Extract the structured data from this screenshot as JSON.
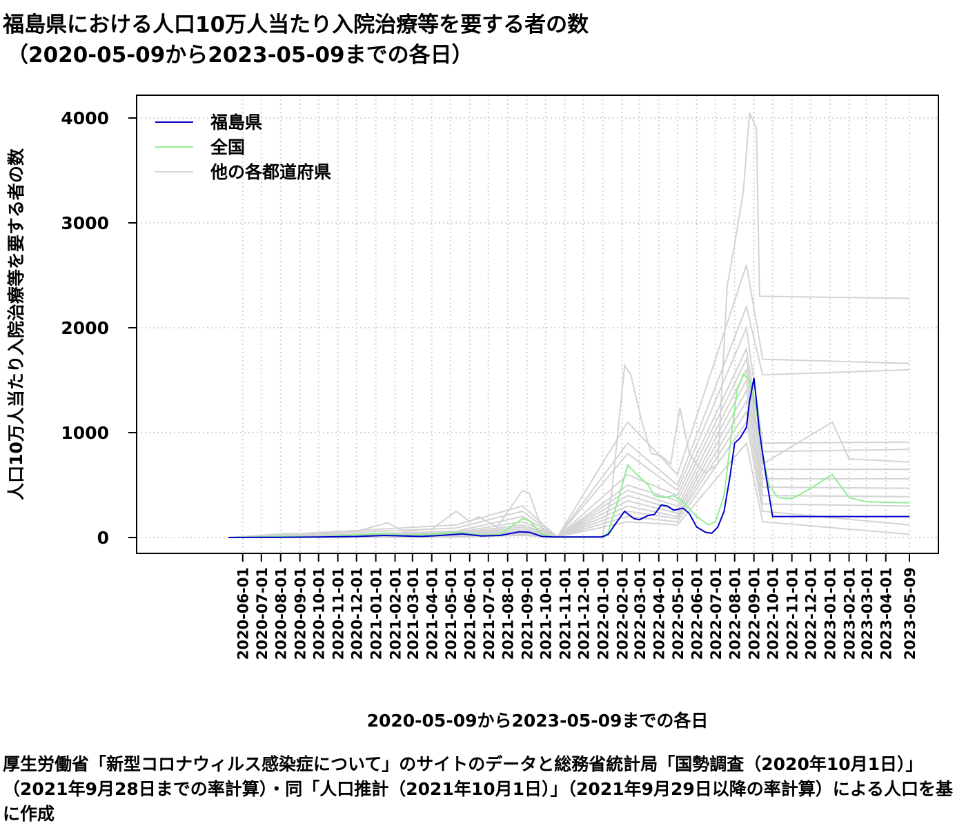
{
  "title_line1": "福島県における人口10万人当たり入院治療等を要する者の数",
  "title_line2": "（2020-05-09から2023-05-09までの各日）",
  "xlabel": "2020-05-09から2023-05-09までの各日",
  "ylabel": "人口10万人当たり入院治療等を要する者の数",
  "caption": "厚生労働省「新型コロナウィルス感染症について」のサイトのデータと総務省統計局「国勢調査（2020年10月1日）」（2021年9月28日までの率計算）・同「人口推計（2021年10月1日）」（2021年9月29日以降の率計算）による人口を基に作成",
  "chart_data": {
    "type": "line",
    "x_range": [
      "2020-05-09",
      "2023-05-09"
    ],
    "ylim": [
      -150,
      4200
    ],
    "y_ticks": [
      0,
      1000,
      2000,
      3000,
      4000
    ],
    "x_tick_labels": [
      "2020-06-01",
      "2020-07-01",
      "2020-08-01",
      "2020-09-01",
      "2020-10-01",
      "2020-11-01",
      "2020-12-01",
      "2021-01-01",
      "2021-02-01",
      "2021-03-01",
      "2021-04-01",
      "2021-05-01",
      "2021-06-01",
      "2021-07-01",
      "2021-08-01",
      "2021-09-01",
      "2021-10-01",
      "2021-11-01",
      "2021-12-01",
      "2022-01-01",
      "2022-02-01",
      "2022-03-01",
      "2022-04-01",
      "2022-05-01",
      "2022-06-01",
      "2022-07-01",
      "2022-08-01",
      "2022-09-01",
      "2022-10-01",
      "2022-11-01",
      "2022-12-01",
      "2023-01-01",
      "2023-02-01",
      "2023-03-01",
      "2023-04-01",
      "2023-05-09"
    ],
    "grid": "dotted",
    "legend_position": "top-left",
    "series": [
      {
        "name": "福島県",
        "color": "#0000cc",
        "points": [
          [
            "2020-05-09",
            0
          ],
          [
            "2020-08-01",
            2
          ],
          [
            "2020-10-01",
            5
          ],
          [
            "2020-12-01",
            10
          ],
          [
            "2021-01-15",
            20
          ],
          [
            "2021-02-15",
            15
          ],
          [
            "2021-03-15",
            10
          ],
          [
            "2021-04-15",
            20
          ],
          [
            "2021-05-20",
            35
          ],
          [
            "2021-06-20",
            15
          ],
          [
            "2021-07-20",
            20
          ],
          [
            "2021-08-20",
            55
          ],
          [
            "2021-09-05",
            50
          ],
          [
            "2021-09-25",
            10
          ],
          [
            "2021-10-15",
            5
          ],
          [
            "2021-12-31",
            5
          ],
          [
            "2022-01-10",
            30
          ],
          [
            "2022-01-20",
            120
          ],
          [
            "2022-02-05",
            250
          ],
          [
            "2022-02-20",
            180
          ],
          [
            "2022-03-01",
            170
          ],
          [
            "2022-03-15",
            210
          ],
          [
            "2022-03-25",
            220
          ],
          [
            "2022-04-05",
            310
          ],
          [
            "2022-04-15",
            300
          ],
          [
            "2022-04-25",
            260
          ],
          [
            "2022-05-10",
            280
          ],
          [
            "2022-05-20",
            230
          ],
          [
            "2022-06-01",
            100
          ],
          [
            "2022-06-15",
            50
          ],
          [
            "2022-06-25",
            40
          ],
          [
            "2022-07-05",
            100
          ],
          [
            "2022-07-15",
            250
          ],
          [
            "2022-07-25",
            600
          ],
          [
            "2022-08-01",
            900
          ],
          [
            "2022-08-10",
            950
          ],
          [
            "2022-08-20",
            1050
          ],
          [
            "2022-08-25",
            1300
          ],
          [
            "2022-09-01",
            1520
          ],
          [
            "2022-09-05",
            1300
          ],
          [
            "2022-09-10",
            1000
          ],
          [
            "2022-09-20",
            600
          ],
          [
            "2022-10-01",
            200
          ],
          [
            "2023-05-09",
            200
          ]
        ]
      },
      {
        "name": "全国",
        "color": "#90ee90",
        "points": [
          [
            "2020-05-09",
            0
          ],
          [
            "2020-08-01",
            10
          ],
          [
            "2020-10-01",
            8
          ],
          [
            "2020-12-01",
            25
          ],
          [
            "2021-01-15",
            40
          ],
          [
            "2021-02-15",
            20
          ],
          [
            "2021-04-01",
            30
          ],
          [
            "2021-05-15",
            50
          ],
          [
            "2021-06-20",
            20
          ],
          [
            "2021-07-20",
            30
          ],
          [
            "2021-08-25",
            180
          ],
          [
            "2021-09-05",
            160
          ],
          [
            "2021-09-25",
            30
          ],
          [
            "2021-10-15",
            5
          ],
          [
            "2021-12-31",
            5
          ],
          [
            "2022-01-10",
            50
          ],
          [
            "2022-01-25",
            350
          ],
          [
            "2022-02-10",
            690
          ],
          [
            "2022-02-25",
            600
          ],
          [
            "2022-03-15",
            500
          ],
          [
            "2022-03-25",
            400
          ],
          [
            "2022-04-10",
            380
          ],
          [
            "2022-04-25",
            400
          ],
          [
            "2022-05-10",
            340
          ],
          [
            "2022-06-01",
            200
          ],
          [
            "2022-06-20",
            120
          ],
          [
            "2022-07-01",
            150
          ],
          [
            "2022-07-15",
            400
          ],
          [
            "2022-07-25",
            900
          ],
          [
            "2022-08-05",
            1400
          ],
          [
            "2022-08-15",
            1560
          ],
          [
            "2022-08-25",
            1500
          ],
          [
            "2022-09-05",
            1200
          ],
          [
            "2022-09-15",
            800
          ],
          [
            "2022-09-25",
            500
          ],
          [
            "2022-10-10",
            380
          ],
          [
            "2022-11-01",
            370
          ],
          [
            "2022-11-20",
            430
          ],
          [
            "2022-12-10",
            500
          ],
          [
            "2022-12-25",
            560
          ],
          [
            "2023-01-05",
            600
          ],
          [
            "2023-01-15",
            520
          ],
          [
            "2023-02-01",
            380
          ],
          [
            "2023-03-01",
            340
          ],
          [
            "2023-05-09",
            330
          ]
        ]
      },
      {
        "name": "他の各都道府県",
        "color": "#d3d3d3",
        "points": [
          [
            "2020-05-09",
            0
          ],
          [
            "2020-08-15",
            40
          ],
          [
            "2020-10-01",
            20
          ],
          [
            "2020-12-01",
            60
          ],
          [
            "2021-01-20",
            140
          ],
          [
            "2021-02-15",
            60
          ],
          [
            "2021-04-01",
            80
          ],
          [
            "2021-05-10",
            250
          ],
          [
            "2021-06-01",
            150
          ],
          [
            "2021-06-15",
            200
          ],
          [
            "2021-07-15",
            100
          ],
          [
            "2021-08-25",
            450
          ],
          [
            "2021-09-05",
            420
          ],
          [
            "2021-09-25",
            80
          ],
          [
            "2021-10-20",
            5
          ],
          [
            "2021-12-31",
            10
          ],
          [
            "2022-01-15",
            400
          ],
          [
            "2022-02-05",
            1640
          ],
          [
            "2022-02-15",
            1550
          ],
          [
            "2022-03-05",
            1100
          ],
          [
            "2022-03-20",
            800
          ],
          [
            "2022-04-05",
            780
          ],
          [
            "2022-04-20",
            700
          ],
          [
            "2022-05-05",
            1240
          ],
          [
            "2022-05-20",
            800
          ],
          [
            "2022-06-01",
            700
          ],
          [
            "2022-06-15",
            620
          ],
          [
            "2022-07-05",
            700
          ],
          [
            "2022-07-20",
            2400
          ],
          [
            "2022-08-01",
            2800
          ],
          [
            "2022-08-15",
            3300
          ],
          [
            "2022-08-25",
            4050
          ],
          [
            "2022-09-05",
            3900
          ],
          [
            "2022-09-10",
            2300
          ],
          [
            "2023-05-09",
            2280
          ]
        ]
      }
    ],
    "extra_gray_series": [
      [
        [
          "2020-05-09",
          0
        ],
        [
          "2021-05-10",
          120
        ],
        [
          "2021-08-25",
          300
        ],
        [
          "2021-10-20",
          5
        ],
        [
          "2022-02-10",
          1100
        ],
        [
          "2022-05-01",
          600
        ],
        [
          "2022-08-20",
          2600
        ],
        [
          "2022-09-15",
          1700
        ],
        [
          "2023-05-09",
          1660
        ]
      ],
      [
        [
          "2020-05-09",
          0
        ],
        [
          "2021-05-10",
          90
        ],
        [
          "2021-08-25",
          250
        ],
        [
          "2021-10-20",
          5
        ],
        [
          "2022-02-10",
          900
        ],
        [
          "2022-05-01",
          500
        ],
        [
          "2022-08-20",
          2200
        ],
        [
          "2022-09-15",
          1550
        ],
        [
          "2023-05-09",
          1600
        ]
      ],
      [
        [
          "2020-05-09",
          0
        ],
        [
          "2021-05-10",
          60
        ],
        [
          "2021-08-25",
          200
        ],
        [
          "2021-10-20",
          5
        ],
        [
          "2022-02-10",
          800
        ],
        [
          "2022-05-01",
          450
        ],
        [
          "2022-08-20",
          2000
        ],
        [
          "2022-09-15",
          900
        ],
        [
          "2023-05-09",
          910
        ]
      ],
      [
        [
          "2020-05-09",
          0
        ],
        [
          "2021-05-10",
          50
        ],
        [
          "2021-08-25",
          150
        ],
        [
          "2021-10-20",
          5
        ],
        [
          "2022-02-10",
          600
        ],
        [
          "2022-05-01",
          400
        ],
        [
          "2022-08-20",
          1800
        ],
        [
          "2022-09-15",
          820
        ],
        [
          "2023-05-09",
          840
        ]
      ],
      [
        [
          "2020-05-09",
          0
        ],
        [
          "2021-05-10",
          40
        ],
        [
          "2021-08-25",
          120
        ],
        [
          "2021-10-20",
          5
        ],
        [
          "2022-02-10",
          500
        ],
        [
          "2022-05-01",
          350
        ],
        [
          "2022-08-20",
          1700
        ],
        [
          "2022-09-15",
          700
        ],
        [
          "2023-01-05",
          1100
        ],
        [
          "2023-02-01",
          750
        ],
        [
          "2023-05-09",
          720
        ]
      ],
      [
        [
          "2020-05-09",
          0
        ],
        [
          "2021-05-10",
          30
        ],
        [
          "2021-08-25",
          100
        ],
        [
          "2021-10-20",
          5
        ],
        [
          "2022-02-10",
          450
        ],
        [
          "2022-05-01",
          300
        ],
        [
          "2022-08-20",
          1600
        ],
        [
          "2022-09-15",
          650
        ],
        [
          "2023-05-09",
          650
        ]
      ],
      [
        [
          "2020-05-09",
          0
        ],
        [
          "2021-05-10",
          25
        ],
        [
          "2021-08-25",
          80
        ],
        [
          "2021-10-20",
          5
        ],
        [
          "2022-02-10",
          400
        ],
        [
          "2022-05-01",
          260
        ],
        [
          "2022-08-20",
          1500
        ],
        [
          "2022-09-15",
          560
        ],
        [
          "2023-05-09",
          560
        ]
      ],
      [
        [
          "2020-05-09",
          0
        ],
        [
          "2021-05-10",
          20
        ],
        [
          "2021-08-25",
          60
        ],
        [
          "2021-10-20",
          5
        ],
        [
          "2022-02-10",
          350
        ],
        [
          "2022-05-01",
          230
        ],
        [
          "2022-08-20",
          1400
        ],
        [
          "2022-09-15",
          480
        ],
        [
          "2023-05-09",
          470
        ]
      ],
      [
        [
          "2020-05-09",
          0
        ],
        [
          "2021-05-10",
          15
        ],
        [
          "2021-08-25",
          50
        ],
        [
          "2021-10-20",
          5
        ],
        [
          "2022-02-10",
          300
        ],
        [
          "2022-05-01",
          200
        ],
        [
          "2022-08-20",
          1300
        ],
        [
          "2022-09-15",
          400
        ],
        [
          "2023-05-09",
          390
        ]
      ],
      [
        [
          "2020-05-09",
          0
        ],
        [
          "2021-05-10",
          10
        ],
        [
          "2021-08-25",
          40
        ],
        [
          "2021-10-20",
          5
        ],
        [
          "2022-02-10",
          250
        ],
        [
          "2022-05-01",
          180
        ],
        [
          "2022-08-20",
          1200
        ],
        [
          "2022-09-15",
          320
        ],
        [
          "2023-05-09",
          300
        ]
      ],
      [
        [
          "2020-05-09",
          0
        ],
        [
          "2021-05-10",
          8
        ],
        [
          "2021-08-25",
          30
        ],
        [
          "2021-10-20",
          5
        ],
        [
          "2022-02-10",
          200
        ],
        [
          "2022-05-01",
          150
        ],
        [
          "2022-08-20",
          1100
        ],
        [
          "2022-09-15",
          250
        ],
        [
          "2023-05-09",
          120
        ]
      ],
      [
        [
          "2020-05-09",
          0
        ],
        [
          "2021-05-10",
          5
        ],
        [
          "2021-08-25",
          20
        ],
        [
          "2021-10-20",
          5
        ],
        [
          "2022-02-10",
          150
        ],
        [
          "2022-05-01",
          120
        ],
        [
          "2022-08-20",
          900
        ],
        [
          "2022-09-15",
          150
        ],
        [
          "2023-05-09",
          30
        ]
      ]
    ]
  }
}
